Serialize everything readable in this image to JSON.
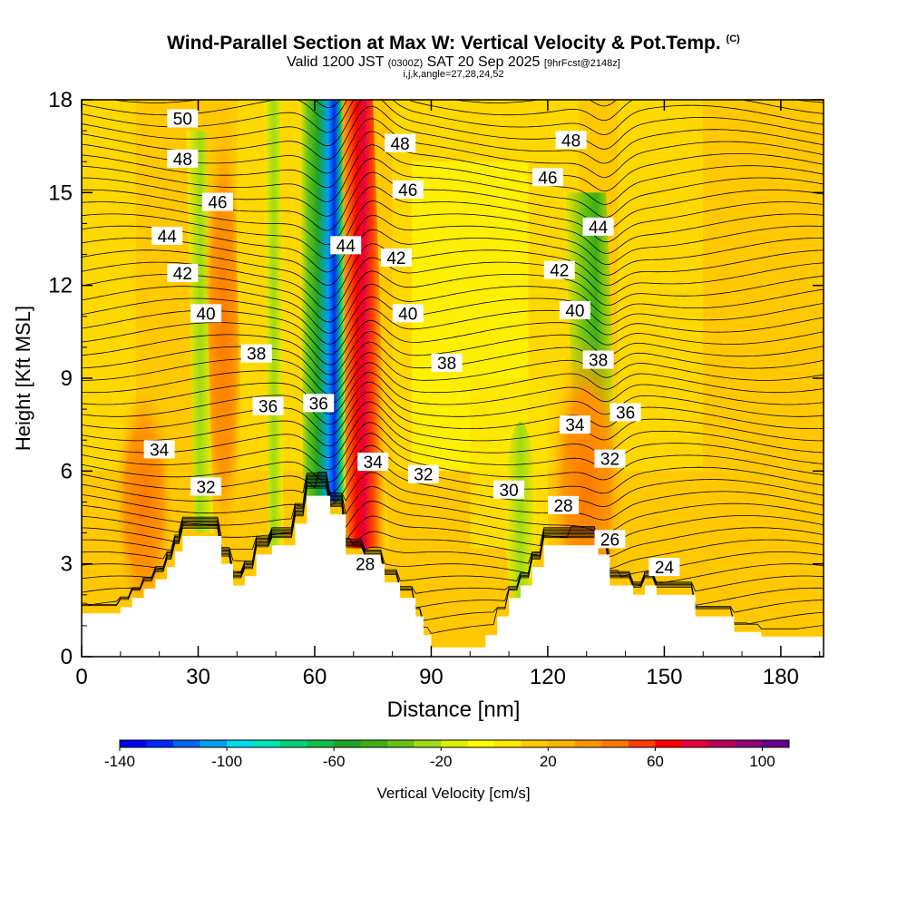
{
  "header": {
    "title": "Wind-Parallel Section at Max W: Vertical Velocity & Pot.Temp.",
    "copyright": "(C)",
    "valid_prefix": "Valid 1200 JST",
    "valid_utc": "(0300Z)",
    "valid_date": "SAT 20 Sep 2025",
    "forecast": "[9hrFcst@2148z]",
    "params": "i,j,k,angle=27,28,24,52"
  },
  "colorbar": {
    "label": "Vertical Velocity [cm/s]",
    "ticks": [
      {
        "value": -140,
        "text": "-140"
      },
      {
        "value": -100,
        "text": "-100"
      },
      {
        "value": -60,
        "text": "-60"
      },
      {
        "value": -20,
        "text": "-20"
      },
      {
        "value": 20,
        "text": "20"
      },
      {
        "value": 60,
        "text": "60"
      },
      {
        "value": 100,
        "text": "100"
      }
    ],
    "bins": [
      {
        "from": -140,
        "color": "#0000f0"
      },
      {
        "from": -130,
        "color": "#0028f4"
      },
      {
        "from": -120,
        "color": "#0064f0"
      },
      {
        "from": -110,
        "color": "#00a0f0"
      },
      {
        "from": -100,
        "color": "#00dcf0"
      },
      {
        "from": -90,
        "color": "#00e6b4"
      },
      {
        "from": -80,
        "color": "#00d278"
      },
      {
        "from": -70,
        "color": "#0fbe46"
      },
      {
        "from": -60,
        "color": "#1ea528"
      },
      {
        "from": -50,
        "color": "#3caf14"
      },
      {
        "from": -40,
        "color": "#64c314"
      },
      {
        "from": -30,
        "color": "#a0dc14"
      },
      {
        "from": -20,
        "color": "#dcf000"
      },
      {
        "from": -10,
        "color": "#ffff00"
      },
      {
        "from": 0,
        "color": "#ffe600"
      },
      {
        "from": 10,
        "color": "#ffc800"
      },
      {
        "from": 20,
        "color": "#ffb400"
      },
      {
        "from": 30,
        "color": "#ff9600"
      },
      {
        "from": 40,
        "color": "#ff7800"
      },
      {
        "from": 50,
        "color": "#ff3c00"
      },
      {
        "from": 60,
        "color": "#ff0000"
      },
      {
        "from": 70,
        "color": "#e6003c"
      },
      {
        "from": 80,
        "color": "#b4005a"
      },
      {
        "from": 90,
        "color": "#8c0078"
      },
      {
        "from": 100,
        "color": "#64008c"
      },
      {
        "from": 110,
        "color": null
      }
    ]
  },
  "chart_data": {
    "type": "heatmap",
    "title": "Wind-Parallel Section at Max W: Vertical Velocity & Pot.Temp.",
    "xlabel": "Distance [nm]",
    "ylabel": "Height [Kft MSL]",
    "xlim": [
      0,
      191
    ],
    "ylim": [
      0,
      18
    ],
    "xticks": [
      0,
      30,
      60,
      90,
      120,
      150,
      180
    ],
    "yticks": [
      0,
      3,
      6,
      9,
      12,
      15,
      18
    ],
    "background_color": "#ffc800",
    "terrain": [
      [
        0,
        1.4
      ],
      [
        10,
        1.4
      ],
      [
        10,
        1.6
      ],
      [
        13,
        1.6
      ],
      [
        13,
        1.9
      ],
      [
        16,
        1.9
      ],
      [
        16,
        2.2
      ],
      [
        19,
        2.2
      ],
      [
        19,
        2.5
      ],
      [
        22,
        2.5
      ],
      [
        22,
        2.9
      ],
      [
        24,
        2.9
      ],
      [
        24,
        3.4
      ],
      [
        26,
        3.4
      ],
      [
        26,
        3.9
      ],
      [
        36,
        3.9
      ],
      [
        36,
        3.0
      ],
      [
        39,
        3.0
      ],
      [
        39,
        2.3
      ],
      [
        42,
        2.3
      ],
      [
        42,
        2.6
      ],
      [
        45,
        2.6
      ],
      [
        45,
        3.3
      ],
      [
        49,
        3.3
      ],
      [
        49,
        3.6
      ],
      [
        55,
        3.6
      ],
      [
        55,
        4.3
      ],
      [
        58,
        4.3
      ],
      [
        58,
        5.2
      ],
      [
        64,
        5.2
      ],
      [
        64,
        4.6
      ],
      [
        68,
        4.6
      ],
      [
        68,
        3.3
      ],
      [
        73,
        3.3
      ],
      [
        73,
        3.0
      ],
      [
        78,
        3.0
      ],
      [
        78,
        2.4
      ],
      [
        82,
        2.4
      ],
      [
        82,
        1.9
      ],
      [
        86,
        1.9
      ],
      [
        86,
        1.3
      ],
      [
        88,
        1.3
      ],
      [
        88,
        0.7
      ],
      [
        90,
        0.7
      ],
      [
        90,
        0.3
      ],
      [
        104,
        0.3
      ],
      [
        104,
        0.7
      ],
      [
        107,
        0.7
      ],
      [
        107,
        1.3
      ],
      [
        110,
        1.3
      ],
      [
        110,
        1.9
      ],
      [
        113,
        1.9
      ],
      [
        113,
        2.3
      ],
      [
        116,
        2.3
      ],
      [
        116,
        2.9
      ],
      [
        119,
        2.9
      ],
      [
        119,
        3.6
      ],
      [
        133,
        3.6
      ],
      [
        133,
        3.3
      ],
      [
        136,
        3.3
      ],
      [
        136,
        2.3
      ],
      [
        142,
        2.3
      ],
      [
        142,
        2.0
      ],
      [
        145,
        2.0
      ],
      [
        145,
        2.3
      ],
      [
        148,
        2.3
      ],
      [
        148,
        2.0
      ],
      [
        158,
        2.0
      ],
      [
        158,
        1.3
      ],
      [
        168,
        1.3
      ],
      [
        168,
        0.8
      ],
      [
        175,
        0.8
      ],
      [
        175,
        0.65
      ],
      [
        191,
        0.65
      ]
    ],
    "theta_levels": [
      24,
      26,
      28,
      30,
      32,
      34,
      36,
      38,
      40,
      42,
      44,
      46,
      48,
      50
    ],
    "contour_labels": [
      {
        "x": 26,
        "y": 17.4,
        "text": "50"
      },
      {
        "x": 26,
        "y": 16.1,
        "text": "48"
      },
      {
        "x": 35,
        "y": 14.7,
        "text": "46"
      },
      {
        "x": 22,
        "y": 13.6,
        "text": "44"
      },
      {
        "x": 26,
        "y": 12.4,
        "text": "42"
      },
      {
        "x": 32,
        "y": 11.1,
        "text": "40"
      },
      {
        "x": 45,
        "y": 9.8,
        "text": "38"
      },
      {
        "x": 48,
        "y": 8.1,
        "text": "36"
      },
      {
        "x": 20,
        "y": 6.7,
        "text": "34"
      },
      {
        "x": 32,
        "y": 5.5,
        "text": "32"
      },
      {
        "x": 68,
        "y": 13.3,
        "text": "44"
      },
      {
        "x": 82,
        "y": 16.6,
        "text": "48"
      },
      {
        "x": 84,
        "y": 15.1,
        "text": "46"
      },
      {
        "x": 81,
        "y": 12.9,
        "text": "42"
      },
      {
        "x": 84,
        "y": 11.1,
        "text": "40"
      },
      {
        "x": 61,
        "y": 8.2,
        "text": "36"
      },
      {
        "x": 75,
        "y": 6.3,
        "text": "34"
      },
      {
        "x": 88,
        "y": 5.9,
        "text": "32"
      },
      {
        "x": 73,
        "y": 3.0,
        "text": "28"
      },
      {
        "x": 94,
        "y": 9.5,
        "text": "38"
      },
      {
        "x": 110,
        "y": 5.4,
        "text": "30"
      },
      {
        "x": 124,
        "y": 4.9,
        "text": "28"
      },
      {
        "x": 127,
        "y": 7.5,
        "text": "34"
      },
      {
        "x": 126,
        "y": 16.7,
        "text": "48"
      },
      {
        "x": 120,
        "y": 15.5,
        "text": "46"
      },
      {
        "x": 133,
        "y": 13.9,
        "text": "44"
      },
      {
        "x": 123,
        "y": 12.5,
        "text": "42"
      },
      {
        "x": 127,
        "y": 11.2,
        "text": "40"
      },
      {
        "x": 133,
        "y": 9.6,
        "text": "38"
      },
      {
        "x": 140,
        "y": 7.9,
        "text": "36"
      },
      {
        "x": 136,
        "y": 6.4,
        "text": "32"
      },
      {
        "x": 136,
        "y": 3.8,
        "text": "26"
      },
      {
        "x": 150,
        "y": 2.9,
        "text": "24"
      }
    ],
    "vertical_velocity_features": [
      {
        "x0": 68,
        "x1": 79,
        "y0": 3.5,
        "y1": 18,
        "peak": 85
      },
      {
        "x0": 57,
        "x1": 68,
        "y0": 5.0,
        "y1": 18,
        "peak": -130
      },
      {
        "x0": 127,
        "x1": 138,
        "y0": 6.5,
        "y1": 15,
        "peak": -40
      },
      {
        "x0": 29,
        "x1": 34,
        "y0": 4,
        "y1": 17,
        "peak": -30
      },
      {
        "x0": 48,
        "x1": 52,
        "y0": 3.5,
        "y1": 18,
        "peak": -40
      },
      {
        "x0": 14,
        "x1": 18,
        "y0": 3,
        "y1": 7,
        "peak": 40
      },
      {
        "x0": 34,
        "x1": 42,
        "y0": 3,
        "y1": 18,
        "peak": 35
      }
    ]
  }
}
